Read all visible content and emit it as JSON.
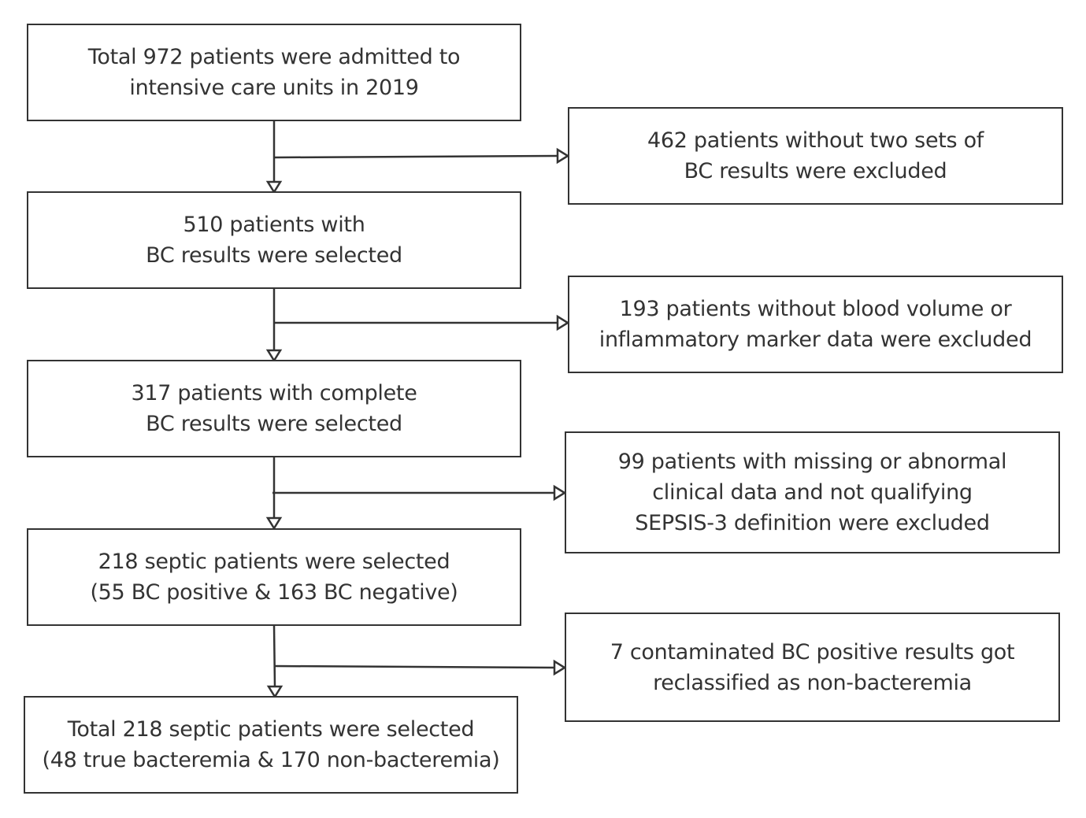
{
  "main_flow": [
    {
      "lines": [
        "Total 972 patients were admitted to",
        "intensive care units in 2019"
      ]
    },
    {
      "lines": [
        "510 patients with",
        "BC results were selected"
      ]
    },
    {
      "lines": [
        "317 patients with complete",
        "BC results were selected"
      ]
    },
    {
      "lines": [
        "218 septic patients were selected",
        "(55 BC positive & 163 BC negative)"
      ]
    },
    {
      "lines": [
        "Total 218 septic patients were selected",
        "(48 true bacteremia & 170 non-bacteremia)"
      ]
    }
  ],
  "exclusions": [
    {
      "lines": [
        "462 patients without two sets of",
        "BC results were excluded"
      ]
    },
    {
      "lines": [
        "193 patients without blood volume or",
        "inflammatory marker data were excluded"
      ]
    },
    {
      "lines": [
        "99 patients with missing or abnormal",
        "clinical data and not qualifying",
        "SEPSIS-3 definition were excluded"
      ]
    },
    {
      "lines": [
        "7 contaminated BC positive results got",
        "reclassified as non-bacteremia"
      ]
    }
  ]
}
